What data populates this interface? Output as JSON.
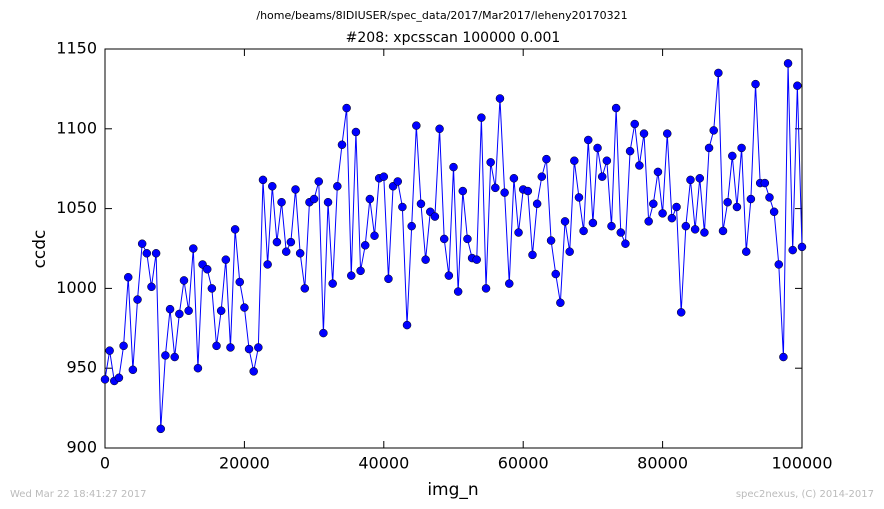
{
  "chart_data": {
    "type": "line",
    "title": "/home/beams/8IDIUSER/spec_data/2017/Mar2017/leheny20170321",
    "subtitle": "#208: xpcsscan 100000 0.001",
    "xlabel": "img_n",
    "ylabel": "ccdc",
    "footer_left": "Wed Mar 22 18:41:27 2017",
    "footer_right": "spec2nexus, (C) 2014-2017",
    "color": "#0000ff",
    "x": [
      0,
      667,
      1333,
      2000,
      2667,
      3333,
      4000,
      4667,
      5333,
      6000,
      6667,
      7333,
      8000,
      8667,
      9333,
      10000,
      10667,
      11333,
      12000,
      12667,
      13333,
      14000,
      14667,
      15333,
      16000,
      16667,
      17333,
      18000,
      18667,
      19333,
      20000,
      20667,
      21333,
      22000,
      22667,
      23333,
      24000,
      24667,
      25333,
      26000,
      26667,
      27333,
      28000,
      28667,
      29333,
      30000,
      30667,
      31333,
      32000,
      32667,
      33333,
      34000,
      34667,
      35333,
      36000,
      36667,
      37333,
      38000,
      38667,
      39333,
      40000,
      40667,
      41333,
      42000,
      42667,
      43333,
      44000,
      44667,
      45333,
      46000,
      46667,
      47333,
      48000,
      48667,
      49333,
      50000,
      50667,
      51333,
      52000,
      52667,
      53333,
      54000,
      54667,
      55333,
      56000,
      56667,
      57333,
      58000,
      58667,
      59333,
      60000,
      60667,
      61333,
      62000,
      62667,
      63333,
      64000,
      64667,
      65333,
      66000,
      66667,
      67333,
      68000,
      68667,
      69333,
      70000,
      70667,
      71333,
      72000,
      72667,
      73333,
      74000,
      74667,
      75333,
      76000,
      76667,
      77333,
      78000,
      78667,
      79333,
      80000,
      80667,
      81333,
      82000,
      82667,
      83333,
      84000,
      84667,
      85333,
      86000,
      86667,
      87333,
      88000,
      88667,
      89333,
      90000,
      90667,
      91333,
      92000,
      92667,
      93333,
      94000,
      94667,
      95333,
      96000,
      96667,
      97333,
      98000,
      98667,
      99333,
      100000
    ],
    "values": [
      943,
      961,
      942,
      944,
      964,
      1007,
      949,
      993,
      1028,
      1022,
      1001,
      1022,
      912,
      958,
      987,
      957,
      984,
      1005,
      986,
      1025,
      950,
      1015,
      1012,
      1000,
      964,
      986,
      1018,
      963,
      1037,
      1004,
      988,
      962,
      948,
      963,
      1068,
      1015,
      1064,
      1029,
      1054,
      1023,
      1029,
      1062,
      1022,
      1000,
      1054,
      1056,
      1067,
      972,
      1054,
      1003,
      1064,
      1090,
      1113,
      1008,
      1098,
      1011,
      1027,
      1056,
      1033,
      1069,
      1070,
      1006,
      1064,
      1067,
      1051,
      977,
      1039,
      1102,
      1053,
      1018,
      1048,
      1045,
      1100,
      1031,
      1008,
      1076,
      998,
      1061,
      1031,
      1019,
      1018,
      1107,
      1000,
      1079,
      1063,
      1119,
      1060,
      1003,
      1069,
      1035,
      1062,
      1061,
      1021,
      1053,
      1070,
      1081,
      1030,
      1009,
      991,
      1042,
      1023,
      1080,
      1057,
      1036,
      1093,
      1041,
      1088,
      1070,
      1080,
      1039,
      1113,
      1035,
      1028,
      1086,
      1103,
      1077,
      1097,
      1042,
      1053,
      1073,
      1047,
      1097,
      1044,
      1051,
      985,
      1039,
      1068,
      1037,
      1069,
      1035,
      1088,
      1099,
      1135,
      1036,
      1054,
      1083,
      1051,
      1088,
      1023,
      1056,
      1128,
      1066,
      1066,
      1057,
      1048,
      1015,
      957,
      1141,
      1024,
      1127,
      1026
    ],
    "xlim": [
      0,
      100000
    ],
    "ylim": [
      900,
      1150
    ],
    "xticks": [
      0,
      20000,
      40000,
      60000,
      80000,
      100000
    ],
    "yticks": [
      900,
      950,
      1000,
      1050,
      1100,
      1150
    ],
    "grid": false
  }
}
